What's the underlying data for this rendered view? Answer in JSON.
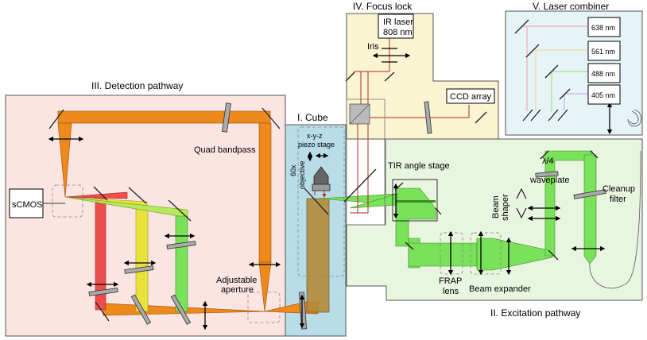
{
  "sections": {
    "detection": "III. Detection pathway",
    "cube": "I. Cube",
    "focus_lock": "IV. Focus lock",
    "laser_combiner": "V. Laser combiner",
    "excitation": "II. Excitation pathway"
  },
  "labels": {
    "scmos": "sCMOS",
    "quad_bandpass": "Quad bandpass",
    "adjustable_aperture_1": "Adjustable",
    "adjustable_aperture_2": "aperture",
    "piezo_1": "x-y-z",
    "piezo_2": "piezo stage",
    "objective_1": "60x",
    "objective_2": "objective",
    "ir_laser_1": "IR laser",
    "ir_laser_2": "808 nm",
    "iris": "Iris",
    "ccd": "CCD array",
    "tir": "TIR angle stage",
    "waveplate_1": "λ/4",
    "waveplate_2": "waveplate",
    "cleanup_1": "Cleanup",
    "cleanup_2": "filter",
    "beam_shaper_1": "Beam",
    "beam_shaper_2": "shaper",
    "frap_1": "FRAP",
    "frap_2": "lens",
    "beam_expander": "Beam expander"
  },
  "wavelengths": [
    "638 nm",
    "561 nm",
    "488 nm",
    "405 nm"
  ],
  "colors": {
    "detection_bg": "#fbe5e3",
    "cube_bg": "#b8dde9",
    "focus_bg": "#fbf4d2",
    "combiner_bg": "#e6f4f8",
    "excitation_bg": "#e8f6e0",
    "orange_beam": "#ee8a1c",
    "green_beam": "#79e25a",
    "red_beam": "#ec4e4e",
    "yellow_beam": "#e7e23c",
    "ir_line": "#b02a2a"
  }
}
